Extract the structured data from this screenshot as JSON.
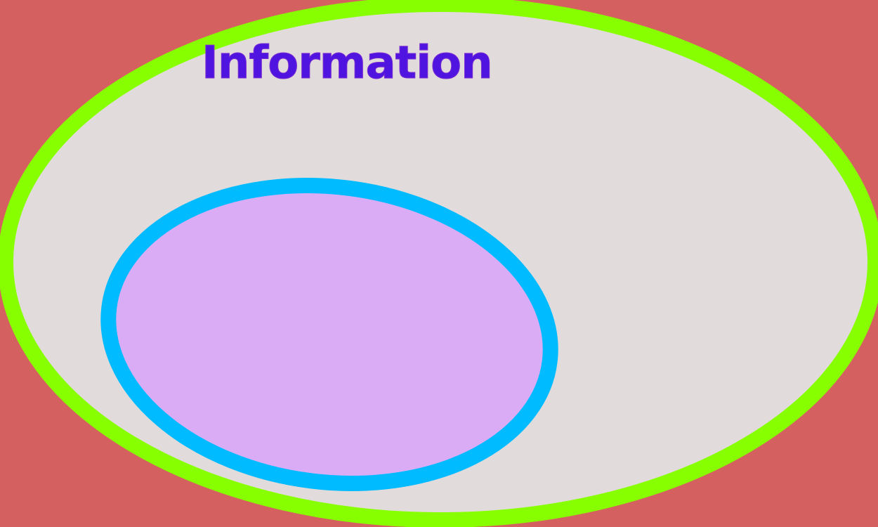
{
  "diagram": {
    "title": "Information",
    "colors": {
      "background": "#d56060",
      "outer_fill": "#e2dbdc",
      "outer_stroke": "#88ff00",
      "inner_fill": "#dbacf6",
      "inner_stroke": "#00bbff",
      "title": "#5014e0"
    }
  }
}
